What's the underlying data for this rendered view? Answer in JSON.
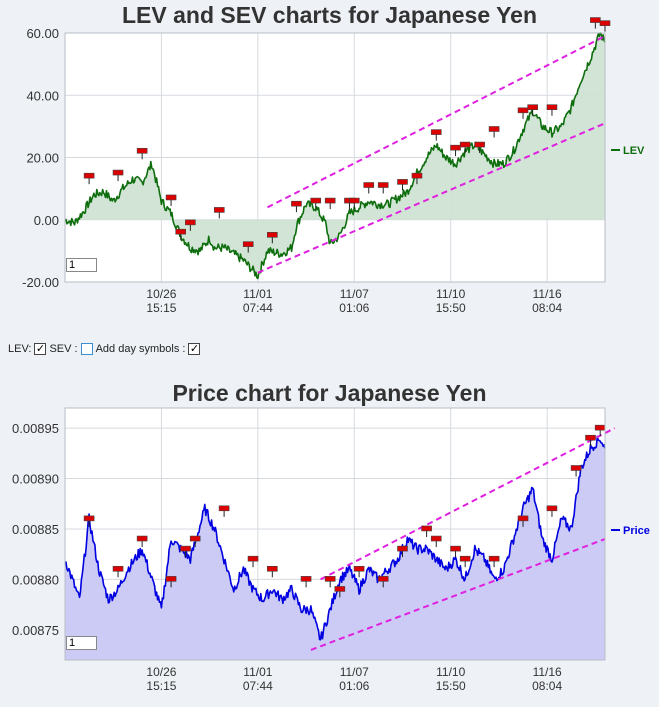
{
  "controls": {
    "lev_label": "LEV:",
    "sev_label": "SEV :",
    "day_label": "Add day symbols :",
    "lev_checked": true,
    "sev_checked": false,
    "day_checked": true,
    "check_glyph": "✓",
    "input_top": "1",
    "input_bottom": "1"
  },
  "colors": {
    "lev_line": "#0e6e0e",
    "lev_fill": "#cfe3d3",
    "price_line": "#0000e0",
    "price_fill": "#c8c8f4",
    "trend": "#e020e0",
    "marker": "#dd0000"
  },
  "chart_data": [
    {
      "type": "line",
      "title": "LEV and SEV charts for Japanese Yen",
      "series": [
        {
          "name": "LEV",
          "points": [
            [
              0,
              0
            ],
            [
              2,
              -1
            ],
            [
              4,
              3
            ],
            [
              6,
              8
            ],
            [
              8,
              9
            ],
            [
              10,
              6
            ],
            [
              12,
              10
            ],
            [
              14,
              13
            ],
            [
              16,
              12
            ],
            [
              18,
              18
            ],
            [
              20,
              6
            ],
            [
              22,
              2
            ],
            [
              24,
              -5
            ],
            [
              26,
              -9
            ],
            [
              28,
              -10
            ],
            [
              30,
              -6
            ],
            [
              31,
              -9
            ],
            [
              33,
              -9
            ],
            [
              35,
              -11
            ],
            [
              37,
              -13
            ],
            [
              40,
              -18
            ],
            [
              42,
              -10
            ],
            [
              45,
              -11
            ],
            [
              47,
              -9
            ],
            [
              48,
              -2
            ],
            [
              50,
              5
            ],
            [
              52,
              4
            ],
            [
              54,
              -1
            ],
            [
              55,
              -8
            ],
            [
              57,
              -5
            ],
            [
              59,
              2
            ],
            [
              61,
              4
            ],
            [
              63,
              6
            ],
            [
              65,
              5
            ],
            [
              67,
              5
            ],
            [
              69,
              7
            ],
            [
              71,
              9
            ],
            [
              73,
              15
            ],
            [
              75,
              20
            ],
            [
              77,
              24
            ],
            [
              79,
              20
            ],
            [
              81,
              18
            ],
            [
              83,
              22
            ],
            [
              85,
              24
            ],
            [
              87,
              21
            ],
            [
              89,
              18
            ],
            [
              91,
              18
            ],
            [
              93,
              22
            ],
            [
              95,
              29
            ],
            [
              97,
              35
            ],
            [
              99,
              30
            ],
            [
              101,
              28
            ],
            [
              103,
              30
            ],
            [
              105,
              36
            ],
            [
              107,
              45
            ],
            [
              109,
              52
            ],
            [
              111,
              60
            ],
            [
              112,
              57
            ]
          ]
        }
      ],
      "x_ticks": [
        {
          "x": 20,
          "date": "10/26",
          "time": "15:15"
        },
        {
          "x": 40,
          "date": "11/01",
          "time": "07:44"
        },
        {
          "x": 60,
          "date": "11/07",
          "time": "01:06"
        },
        {
          "x": 80,
          "date": "11/10",
          "time": "15:50"
        },
        {
          "x": 100,
          "date": "11/16",
          "time": "08:04"
        }
      ],
      "y_ticks": [
        "60.00",
        "40.00",
        "20.00",
        "0.00",
        "-20.00"
      ],
      "ylim": [
        -20,
        60
      ],
      "xlim": [
        0,
        112
      ],
      "legend": "LEV",
      "legend_position": "right",
      "trend_lines": [
        {
          "from": [
            42,
            4
          ],
          "to": [
            112,
            59
          ]
        },
        {
          "from": [
            40,
            -17
          ],
          "to": [
            112,
            31
          ]
        }
      ],
      "markers": [
        [
          5,
          14
        ],
        [
          11,
          15
        ],
        [
          16,
          22
        ],
        [
          22,
          7
        ],
        [
          24,
          -4
        ],
        [
          26,
          -1
        ],
        [
          32,
          3
        ],
        [
          38,
          -8
        ],
        [
          43,
          -5
        ],
        [
          48,
          5
        ],
        [
          52,
          6
        ],
        [
          55,
          6
        ],
        [
          59,
          6
        ],
        [
          60,
          6
        ],
        [
          63,
          11
        ],
        [
          66,
          11
        ],
        [
          70,
          12
        ],
        [
          73,
          14
        ],
        [
          77,
          28
        ],
        [
          81,
          23
        ],
        [
          83,
          24
        ],
        [
          86,
          24
        ],
        [
          89,
          29
        ],
        [
          95,
          35
        ],
        [
          97,
          36
        ],
        [
          101,
          36
        ],
        [
          110,
          64
        ],
        [
          112,
          63
        ]
      ]
    },
    {
      "type": "line",
      "title": "Price chart for Japanese Yen",
      "series": [
        {
          "name": "Price",
          "points": [
            [
              0,
              0.00882
            ],
            [
              3,
              0.00878
            ],
            [
              5,
              0.00886
            ],
            [
              7,
              0.00881
            ],
            [
              9,
              0.00878
            ],
            [
              11,
              0.00879
            ],
            [
              13,
              0.00881
            ],
            [
              16,
              0.00883
            ],
            [
              18,
              0.0088
            ],
            [
              20,
              0.00877
            ],
            [
              22,
              0.00884
            ],
            [
              24,
              0.00883
            ],
            [
              26,
              0.00882
            ],
            [
              29,
              0.00887
            ],
            [
              31,
              0.00885
            ],
            [
              33,
              0.00882
            ],
            [
              35,
              0.00879
            ],
            [
              37,
              0.00881
            ],
            [
              39,
              0.00879
            ],
            [
              41,
              0.00878
            ],
            [
              43,
              0.00879
            ],
            [
              45,
              0.00878
            ],
            [
              47,
              0.00879
            ],
            [
              49,
              0.00877
            ],
            [
              51,
              0.00877
            ],
            [
              53,
              0.00874
            ],
            [
              55,
              0.00877
            ],
            [
              57,
              0.0088
            ],
            [
              59,
              0.00881
            ],
            [
              61,
              0.00879
            ],
            [
              63,
              0.00881
            ],
            [
              65,
              0.0088
            ],
            [
              67,
              0.00881
            ],
            [
              69,
              0.00882
            ],
            [
              71,
              0.00884
            ],
            [
              73,
              0.00883
            ],
            [
              75,
              0.00883
            ],
            [
              77,
              0.00882
            ],
            [
              79,
              0.00881
            ],
            [
              81,
              0.00882
            ],
            [
              83,
              0.0088
            ],
            [
              85,
              0.00883
            ],
            [
              87,
              0.00882
            ],
            [
              89,
              0.0088
            ],
            [
              91,
              0.00881
            ],
            [
              93,
              0.00884
            ],
            [
              95,
              0.00887
            ],
            [
              97,
              0.00889
            ],
            [
              99,
              0.00884
            ],
            [
              101,
              0.00882
            ],
            [
              103,
              0.00886
            ],
            [
              105,
              0.00885
            ],
            [
              107,
              0.00891
            ],
            [
              109,
              0.00893
            ],
            [
              111,
              0.00894
            ],
            [
              112,
              0.00893
            ]
          ]
        }
      ],
      "x_ticks": [
        {
          "x": 20,
          "date": "10/26",
          "time": "15:15"
        },
        {
          "x": 40,
          "date": "11/01",
          "time": "07:44"
        },
        {
          "x": 60,
          "date": "11/07",
          "time": "01:06"
        },
        {
          "x": 80,
          "date": "11/10",
          "time": "15:50"
        },
        {
          "x": 100,
          "date": "11/16",
          "time": "08:04"
        }
      ],
      "y_ticks": [
        "0.00895",
        "0.00890",
        "0.00885",
        "0.00880",
        "0.00875"
      ],
      "ylim": [
        0.00872,
        0.00897
      ],
      "xlim": [
        0,
        112
      ],
      "legend": "Price",
      "legend_position": "right",
      "trend_lines": [
        {
          "from": [
            53,
            0.0088
          ],
          "to": [
            114,
            0.00895
          ]
        },
        {
          "from": [
            51,
            0.00873
          ],
          "to": [
            112,
            0.00884
          ]
        }
      ],
      "markers": [
        [
          5,
          0.00886
        ],
        [
          11,
          0.00881
        ],
        [
          16,
          0.00884
        ],
        [
          22,
          0.0088
        ],
        [
          25,
          0.00883
        ],
        [
          27,
          0.00884
        ],
        [
          33,
          0.00887
        ],
        [
          39,
          0.00882
        ],
        [
          43,
          0.00881
        ],
        [
          50,
          0.0088
        ],
        [
          55,
          0.0088
        ],
        [
          57,
          0.00879
        ],
        [
          61,
          0.00881
        ],
        [
          66,
          0.0088
        ],
        [
          70,
          0.00883
        ],
        [
          75,
          0.00885
        ],
        [
          77,
          0.00884
        ],
        [
          81,
          0.00883
        ],
        [
          83,
          0.00882
        ],
        [
          89,
          0.00882
        ],
        [
          95,
          0.00886
        ],
        [
          101,
          0.00887
        ],
        [
          106,
          0.00891
        ],
        [
          109,
          0.00894
        ],
        [
          111,
          0.00895
        ]
      ]
    }
  ]
}
